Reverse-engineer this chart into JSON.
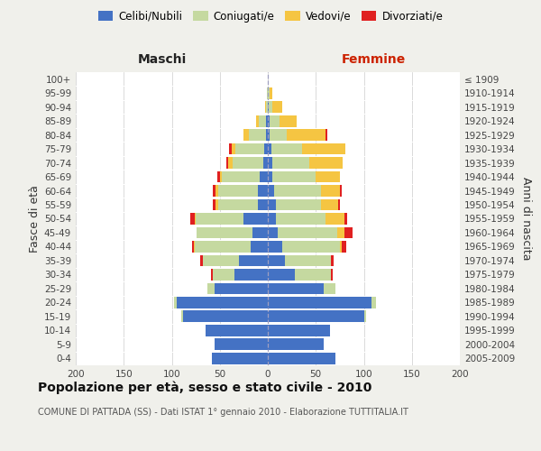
{
  "age_groups": [
    "100+",
    "95-99",
    "90-94",
    "85-89",
    "80-84",
    "75-79",
    "70-74",
    "65-69",
    "60-64",
    "55-59",
    "50-54",
    "45-49",
    "40-44",
    "35-39",
    "30-34",
    "25-29",
    "20-24",
    "15-19",
    "10-14",
    "5-9",
    "0-4"
  ],
  "birth_years": [
    "≤ 1909",
    "1910-1914",
    "1915-1919",
    "1920-1924",
    "1925-1929",
    "1930-1934",
    "1935-1939",
    "1940-1944",
    "1945-1949",
    "1950-1954",
    "1955-1959",
    "1960-1964",
    "1965-1969",
    "1970-1974",
    "1975-1979",
    "1980-1984",
    "1985-1989",
    "1990-1994",
    "1995-1999",
    "2000-2004",
    "2005-2009"
  ],
  "males_celibi": [
    0,
    0,
    0,
    2,
    2,
    4,
    5,
    8,
    10,
    10,
    25,
    16,
    18,
    30,
    35,
    55,
    95,
    88,
    65,
    55,
    58
  ],
  "males_coniugati": [
    0,
    1,
    2,
    7,
    18,
    30,
    32,
    40,
    42,
    42,
    50,
    58,
    58,
    38,
    22,
    8,
    3,
    2,
    0,
    0,
    0
  ],
  "males_vedovi": [
    0,
    0,
    1,
    3,
    5,
    4,
    4,
    2,
    2,
    2,
    1,
    0,
    1,
    0,
    0,
    0,
    0,
    0,
    0,
    0,
    0
  ],
  "males_divorziati": [
    0,
    0,
    0,
    0,
    0,
    2,
    2,
    3,
    3,
    3,
    5,
    0,
    2,
    2,
    2,
    0,
    0,
    0,
    0,
    0,
    0
  ],
  "females_nubili": [
    0,
    0,
    1,
    2,
    2,
    4,
    5,
    5,
    7,
    8,
    8,
    10,
    15,
    18,
    28,
    58,
    108,
    100,
    65,
    58,
    70
  ],
  "females_coniugate": [
    0,
    2,
    4,
    10,
    18,
    32,
    38,
    45,
    48,
    47,
    52,
    62,
    60,
    48,
    38,
    12,
    5,
    2,
    0,
    0,
    0
  ],
  "females_vedove": [
    0,
    3,
    10,
    18,
    40,
    45,
    35,
    25,
    20,
    18,
    20,
    8,
    2,
    0,
    0,
    0,
    0,
    0,
    0,
    0,
    0
  ],
  "females_divorziate": [
    0,
    0,
    0,
    0,
    2,
    0,
    0,
    0,
    2,
    2,
    3,
    8,
    5,
    3,
    2,
    0,
    0,
    0,
    0,
    0,
    0
  ],
  "color_celibi": "#4472c4",
  "color_coniugati": "#c5d9a0",
  "color_vedovi": "#f5c542",
  "color_divorziati": "#e02020",
  "xlim": 200,
  "title": "Popolazione per età, sesso e stato civile - 2010",
  "subtitle": "COMUNE DI PATTADA (SS) - Dati ISTAT 1° gennaio 2010 - Elaborazione TUTTITALIA.IT",
  "bg_color": "#f0f0eb",
  "plot_bg": "#ffffff",
  "label_maschi": "Maschi",
  "label_femmine": "Femmine",
  "ylabel_left": "Fasce di età",
  "ylabel_right": "Anni di nascita",
  "legend_labels": [
    "Celibi/Nubili",
    "Coniugati/e",
    "Vedovi/e",
    "Divorziati/e"
  ]
}
